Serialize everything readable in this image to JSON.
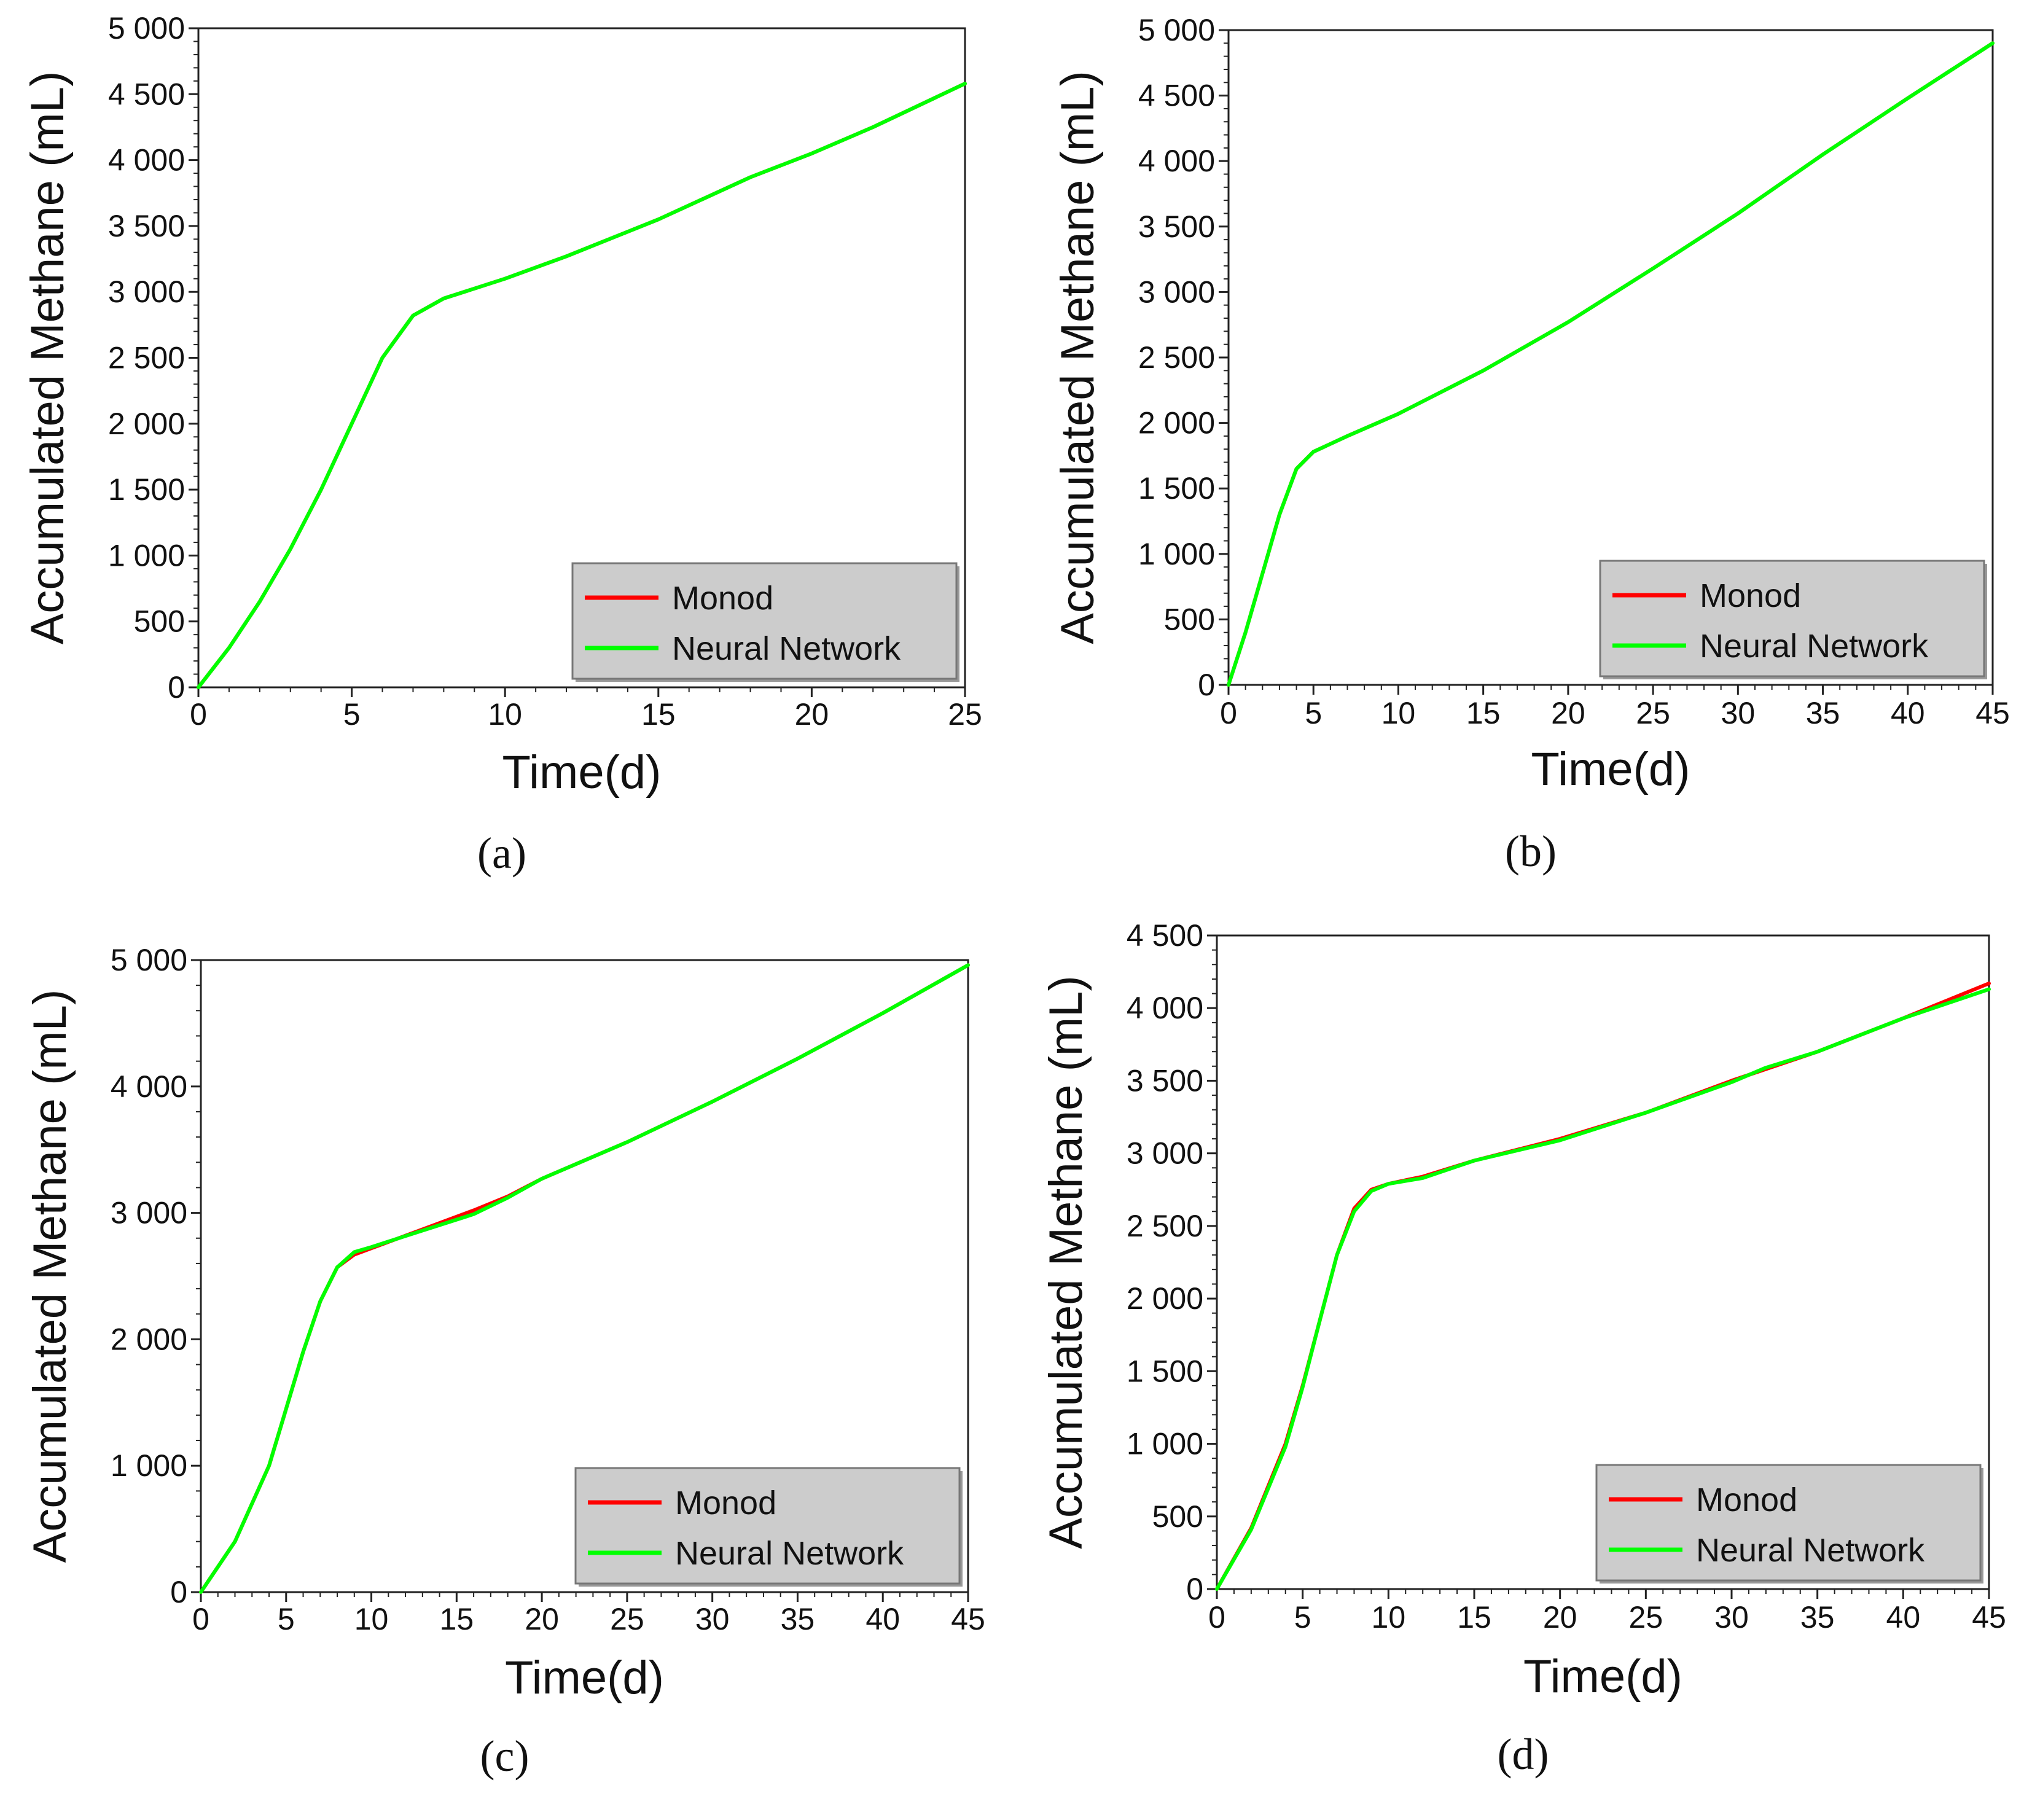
{
  "colors": {
    "monod": "#ff0000",
    "nn": "#00ff00",
    "legend_bg": "#cccccc"
  },
  "chart_data": [
    {
      "type": "line",
      "caption": "(a)",
      "xlabel": "Time(d)",
      "ylabel": "Accumulated Methane (mL)",
      "xlim": [
        0,
        25
      ],
      "ylim": [
        0,
        5000
      ],
      "xticks": [
        0,
        5,
        10,
        15,
        20,
        25
      ],
      "xtick_labels": [
        "0",
        "5",
        "10",
        "15",
        "20",
        "25"
      ],
      "yticks": [
        0,
        500,
        1000,
        1500,
        2000,
        2500,
        3000,
        3500,
        4000,
        4500,
        5000
      ],
      "ytick_labels": [
        "0",
        "500",
        "1 000",
        "1 500",
        "2 000",
        "2 500",
        "3 000",
        "3 500",
        "4 000",
        "4 500",
        "5 000"
      ],
      "legend_position": "bottom-right",
      "series": [
        {
          "name": "Monod",
          "x": [
            0,
            1,
            2,
            3,
            4,
            5,
            6,
            7,
            8,
            10,
            12,
            15,
            18,
            20,
            22,
            25
          ],
          "y": [
            0,
            300,
            650,
            1050,
            1500,
            2000,
            2500,
            2820,
            2950,
            3100,
            3270,
            3550,
            3870,
            4050,
            4250,
            4580
          ]
        },
        {
          "name": "Neural Network",
          "x": [
            0,
            1,
            2,
            3,
            4,
            5,
            6,
            7,
            8,
            10,
            12,
            15,
            18,
            20,
            22,
            25
          ],
          "y": [
            0,
            300,
            650,
            1050,
            1500,
            2000,
            2500,
            2820,
            2950,
            3100,
            3270,
            3550,
            3870,
            4050,
            4250,
            4580
          ]
        }
      ]
    },
    {
      "type": "line",
      "caption": "(b)",
      "xlabel": "Time(d)",
      "ylabel": "Accumulated Methane (mL)",
      "xlim": [
        0,
        45
      ],
      "ylim": [
        0,
        5000
      ],
      "xticks": [
        0,
        5,
        10,
        15,
        20,
        25,
        30,
        35,
        40,
        45
      ],
      "xtick_labels": [
        "0",
        "5",
        "10",
        "15",
        "20",
        "25",
        "30",
        "35",
        "40",
        "45"
      ],
      "yticks": [
        0,
        500,
        1000,
        1500,
        2000,
        2500,
        3000,
        3500,
        4000,
        4500,
        5000
      ],
      "ytick_labels": [
        "0",
        "500",
        "1 000",
        "1 500",
        "2 000",
        "2 500",
        "3 000",
        "3 500",
        "4 000",
        "4 500",
        "5 000"
      ],
      "legend_position": "bottom-right",
      "series": [
        {
          "name": "Monod",
          "x": [
            0,
            1,
            2,
            3,
            4,
            5,
            7,
            10,
            15,
            20,
            25,
            30,
            35,
            40,
            45
          ],
          "y": [
            0,
            400,
            850,
            1300,
            1650,
            1780,
            1900,
            2070,
            2400,
            2770,
            3180,
            3600,
            4050,
            4480,
            4900
          ]
        },
        {
          "name": "Neural Network",
          "x": [
            0,
            1,
            2,
            3,
            4,
            5,
            7,
            10,
            15,
            20,
            25,
            30,
            35,
            40,
            45
          ],
          "y": [
            0,
            400,
            850,
            1300,
            1650,
            1780,
            1900,
            2070,
            2400,
            2770,
            3180,
            3600,
            4050,
            4480,
            4900
          ]
        }
      ]
    },
    {
      "type": "line",
      "caption": "(c)",
      "xlabel": "Time(d)",
      "ylabel": "Accumulated Methane (mL)",
      "xlim": [
        0,
        45
      ],
      "ylim": [
        0,
        5000
      ],
      "xticks": [
        0,
        5,
        10,
        15,
        20,
        25,
        30,
        35,
        40,
        45
      ],
      "xtick_labels": [
        "0",
        "5",
        "10",
        "15",
        "20",
        "25",
        "30",
        "35",
        "40",
        "45"
      ],
      "yticks": [
        0,
        1000,
        2000,
        3000,
        4000,
        5000
      ],
      "ytick_labels": [
        "0",
        "1 000",
        "2 000",
        "3 000",
        "4 000",
        "5 000"
      ],
      "legend_position": "bottom-right",
      "series": [
        {
          "name": "Monod",
          "x": [
            0,
            2,
            4,
            5,
            6,
            7,
            8,
            9,
            10,
            13,
            16,
            18,
            20,
            25,
            30,
            35,
            40,
            45
          ],
          "y": [
            0,
            400,
            1000,
            1450,
            1900,
            2300,
            2570,
            2670,
            2720,
            2870,
            3020,
            3130,
            3270,
            3560,
            3880,
            4220,
            4580,
            4960
          ]
        },
        {
          "name": "Neural Network",
          "x": [
            0,
            2,
            4,
            5,
            6,
            7,
            8,
            9,
            10,
            13,
            16,
            18,
            20,
            25,
            30,
            35,
            40,
            45
          ],
          "y": [
            0,
            400,
            1000,
            1450,
            1900,
            2300,
            2570,
            2690,
            2730,
            2860,
            2990,
            3120,
            3270,
            3560,
            3880,
            4220,
            4580,
            4960
          ]
        }
      ]
    },
    {
      "type": "line",
      "caption": "(d)",
      "xlabel": "Time(d)",
      "ylabel": "Accumulated Methane (mL)",
      "xlim": [
        0,
        45
      ],
      "ylim": [
        0,
        4500
      ],
      "xticks": [
        0,
        5,
        10,
        15,
        20,
        25,
        30,
        35,
        40,
        45
      ],
      "xtick_labels": [
        "0",
        "5",
        "10",
        "15",
        "20",
        "25",
        "30",
        "35",
        "40",
        "45"
      ],
      "yticks": [
        0,
        500,
        1000,
        1500,
        2000,
        2500,
        3000,
        3500,
        4000,
        4500
      ],
      "ytick_labels": [
        "0",
        "500",
        "1 000",
        "1 500",
        "2 000",
        "2 500",
        "3 000",
        "3 500",
        "4 000",
        "4 500"
      ],
      "legend_position": "bottom-right",
      "series": [
        {
          "name": "Monod",
          "x": [
            0,
            2,
            4,
            5,
            6,
            7,
            8,
            9,
            10,
            12,
            15,
            20,
            25,
            30,
            32,
            35,
            40,
            45
          ],
          "y": [
            0,
            420,
            1000,
            1400,
            1850,
            2300,
            2620,
            2750,
            2790,
            2840,
            2950,
            3100,
            3280,
            3500,
            3580,
            3700,
            3930,
            4170
          ]
        },
        {
          "name": "Neural Network",
          "x": [
            0,
            2,
            4,
            5,
            6,
            7,
            8,
            9,
            10,
            12,
            15,
            20,
            25,
            30,
            32,
            35,
            40,
            45
          ],
          "y": [
            0,
            410,
            980,
            1390,
            1850,
            2300,
            2600,
            2740,
            2790,
            2830,
            2950,
            3090,
            3280,
            3490,
            3590,
            3700,
            3930,
            4130
          ]
        }
      ]
    }
  ]
}
